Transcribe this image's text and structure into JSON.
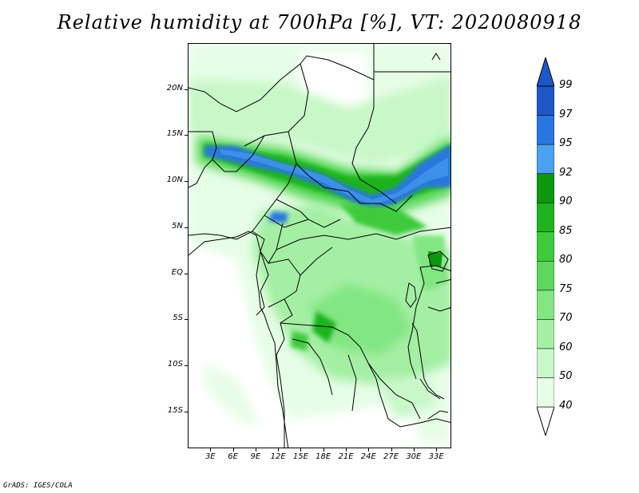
{
  "title": "Relative humidity at 700hPa [%], VT: 2020080918",
  "footer": "GrADS: IGES/COLA",
  "map": {
    "variable": "Relative humidity at 700hPa",
    "unit": "%",
    "valid_time": "2020080918",
    "lat_range": [
      -19,
      25
    ],
    "lon_range": [
      0,
      35
    ],
    "y_axis_labels": [
      {
        "label": "20N",
        "lat": 20
      },
      {
        "label": "15N",
        "lat": 15
      },
      {
        "label": "10N",
        "lat": 10
      },
      {
        "label": "5N",
        "lat": 5
      },
      {
        "label": "EQ",
        "lat": 0
      },
      {
        "label": "5S",
        "lat": -5
      },
      {
        "label": "10S",
        "lat": -10
      },
      {
        "label": "15S",
        "lat": -15
      }
    ],
    "x_axis_labels": [
      {
        "label": "3E",
        "lon": 3
      },
      {
        "label": "6E",
        "lon": 6
      },
      {
        "label": "9E",
        "lon": 9
      },
      {
        "label": "12E",
        "lon": 12
      },
      {
        "label": "15E",
        "lon": 15
      },
      {
        "label": "18E",
        "lon": 18
      },
      {
        "label": "21E",
        "lon": 21
      },
      {
        "label": "24E",
        "lon": 24
      },
      {
        "label": "27E",
        "lon": 27
      },
      {
        "label": "30E",
        "lon": 30
      },
      {
        "label": "33E",
        "lon": 33
      }
    ]
  },
  "legend": {
    "levels": [
      "40",
      "50",
      "60",
      "70",
      "75",
      "80",
      "85",
      "90",
      "92",
      "95",
      "97",
      "99"
    ],
    "colors": [
      "#ffffff",
      "#e6fde6",
      "#c8f7c8",
      "#a4efa4",
      "#82e682",
      "#5cd85c",
      "#3ccb3c",
      "#1fb31f",
      "#0c980c",
      "#49a1f0",
      "#2a76e0",
      "#1e58c6"
    ]
  }
}
